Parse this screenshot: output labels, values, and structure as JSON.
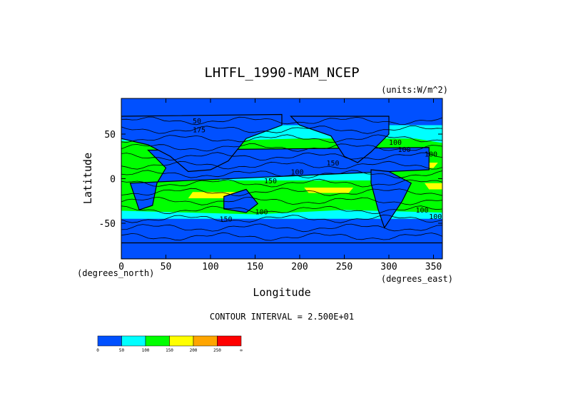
{
  "title": "LHTFL_1990-MAM_NCEP",
  "units": "(units:W/m^2)",
  "xlabel": "Longitude",
  "ylabel": "Latitude",
  "x_unit_label": "(degrees_east)",
  "y_unit_label": "(degrees_north)",
  "contour_interval": "CONTOUR INTERVAL = 2.500E+01",
  "x_ticks": [
    "0",
    "50",
    "100",
    "150",
    "200",
    "250",
    "300",
    "350"
  ],
  "y_ticks": [
    "50",
    "0",
    "-50"
  ],
  "contour_labels": [
    "50",
    "175",
    "150",
    "100",
    "150",
    "100",
    "100",
    "100",
    "100",
    "150",
    "100",
    "100"
  ],
  "colorbar": {
    "colors": [
      "#0050ff",
      "#00ffff",
      "#00ff00",
      "#ffff00",
      "#ffa500",
      "#ff0000"
    ],
    "labels": [
      "0",
      "50",
      "100",
      "150",
      "200",
      "250",
      "∞"
    ]
  },
  "map": {
    "ocean_levels_color": {
      "low": "#0050ff",
      "mid": "#00ffff",
      "high": "#00ff00",
      "max": "#ffff00"
    },
    "land_color": "#0050ff"
  }
}
